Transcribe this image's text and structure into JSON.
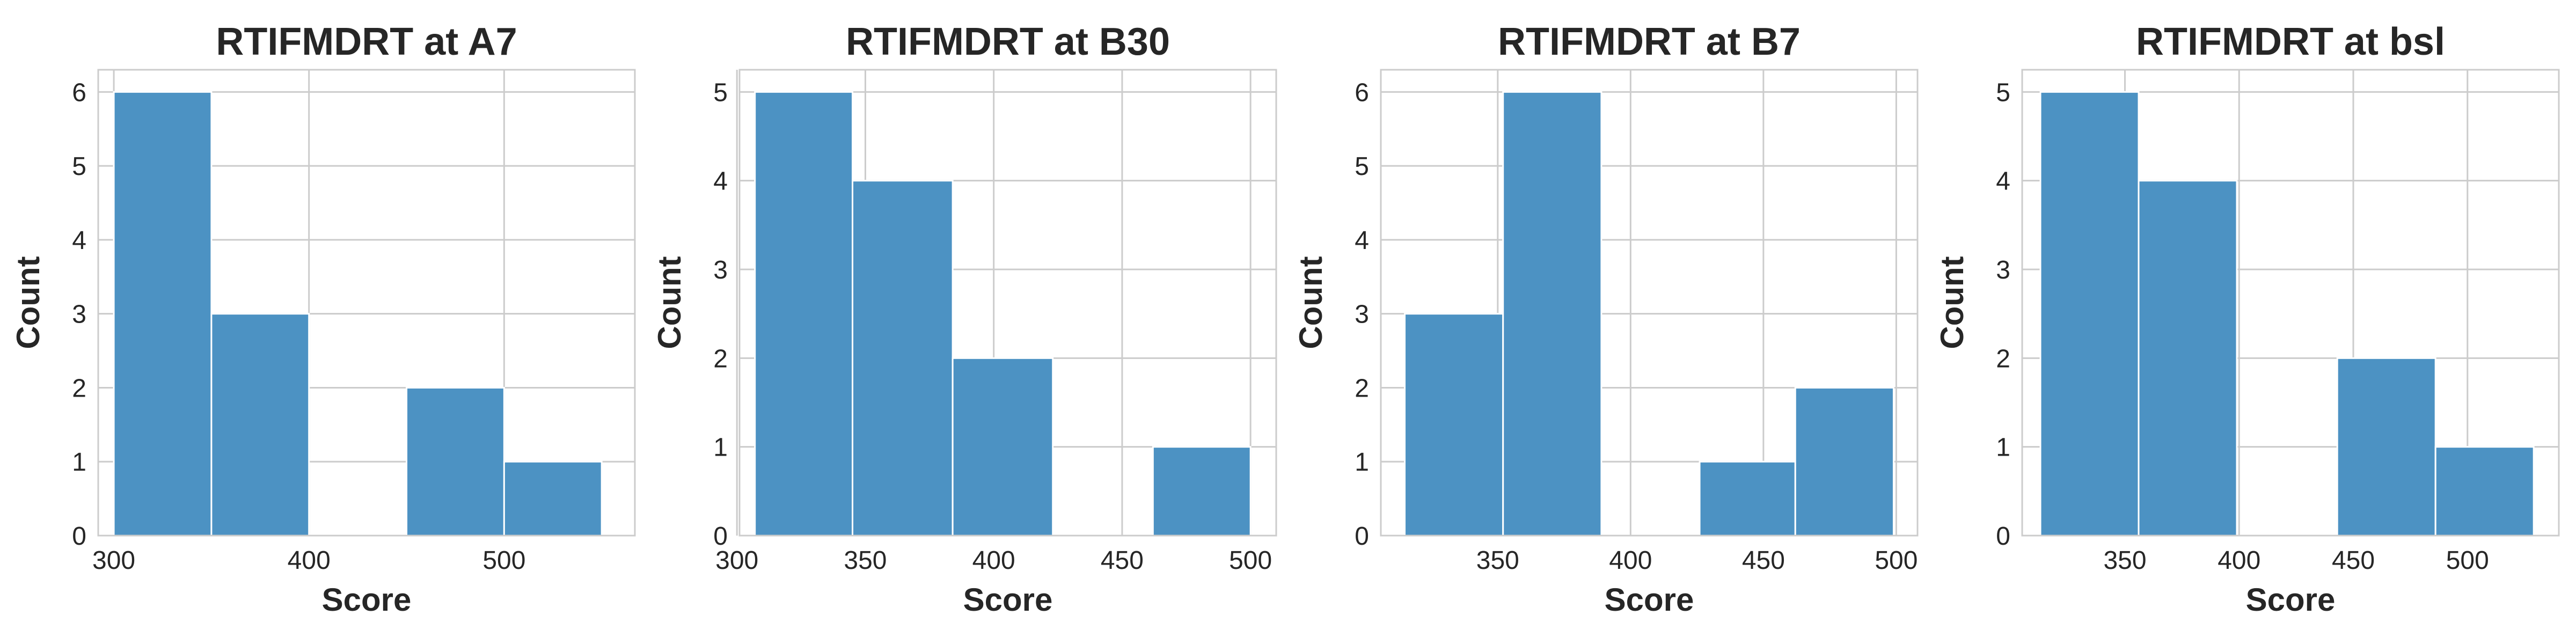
{
  "figure": {
    "bar_color": "#4c92c3",
    "bar_edge_color": "#ffffff",
    "grid_color": "#cccccc",
    "frame_color": "#cccccc",
    "background": "#ffffff"
  },
  "chart_data": [
    {
      "type": "bar",
      "histogram": true,
      "title": "RTIFMDRT at A7",
      "xlabel": "Score",
      "ylabel": "Count",
      "xlim": [
        292,
        567
      ],
      "ylim": [
        0,
        6.3
      ],
      "xticks": [
        300,
        400,
        500
      ],
      "yticks": [
        0,
        1,
        2,
        3,
        4,
        5,
        6
      ],
      "grid": true,
      "bins": [
        {
          "x0": 300,
          "x1": 350,
          "count": 6
        },
        {
          "x0": 350,
          "x1": 400,
          "count": 3
        },
        {
          "x0": 400,
          "x1": 450,
          "count": 0
        },
        {
          "x0": 450,
          "x1": 500,
          "count": 2
        },
        {
          "x0": 500,
          "x1": 550,
          "count": 1
        }
      ]
    },
    {
      "type": "bar",
      "histogram": true,
      "title": "RTIFMDRT at B30",
      "xlabel": "Score",
      "ylabel": "Count",
      "xlim": [
        301,
        510
      ],
      "ylim": [
        0,
        5.25
      ],
      "xticks": [
        300,
        350,
        400,
        450,
        500
      ],
      "yticks": [
        0,
        1,
        2,
        3,
        4,
        5
      ],
      "grid": true,
      "bins": [
        {
          "x0": 307,
          "x1": 345,
          "count": 5
        },
        {
          "x0": 345,
          "x1": 384,
          "count": 4
        },
        {
          "x0": 384,
          "x1": 423,
          "count": 2
        },
        {
          "x0": 423,
          "x1": 462,
          "count": 0
        },
        {
          "x0": 462,
          "x1": 500,
          "count": 1
        }
      ]
    },
    {
      "type": "bar",
      "histogram": true,
      "title": "RTIFMDRT at B7",
      "xlabel": "Score",
      "ylabel": "Count",
      "xlim": [
        306,
        508
      ],
      "ylim": [
        0,
        6.3
      ],
      "xticks": [
        350,
        400,
        450,
        500
      ],
      "yticks": [
        0,
        1,
        2,
        3,
        4,
        5,
        6
      ],
      "grid": true,
      "bins": [
        {
          "x0": 315,
          "x1": 352,
          "count": 3
        },
        {
          "x0": 352,
          "x1": 389,
          "count": 6
        },
        {
          "x0": 389,
          "x1": 426,
          "count": 0
        },
        {
          "x0": 426,
          "x1": 462,
          "count": 1
        },
        {
          "x0": 462,
          "x1": 499,
          "count": 2
        }
      ]
    },
    {
      "type": "bar",
      "histogram": true,
      "title": "RTIFMDRT at bsl",
      "xlabel": "Score",
      "ylabel": "Count",
      "xlim": [
        305,
        540
      ],
      "ylim": [
        0,
        5.25
      ],
      "xticks": [
        350,
        400,
        450,
        500
      ],
      "yticks": [
        0,
        1,
        2,
        3,
        4,
        5
      ],
      "grid": true,
      "bins": [
        {
          "x0": 313,
          "x1": 356,
          "count": 5
        },
        {
          "x0": 356,
          "x1": 399,
          "count": 4
        },
        {
          "x0": 399,
          "x1": 443,
          "count": 0
        },
        {
          "x0": 443,
          "x1": 486,
          "count": 2
        },
        {
          "x0": 486,
          "x1": 529,
          "count": 1
        }
      ]
    }
  ]
}
